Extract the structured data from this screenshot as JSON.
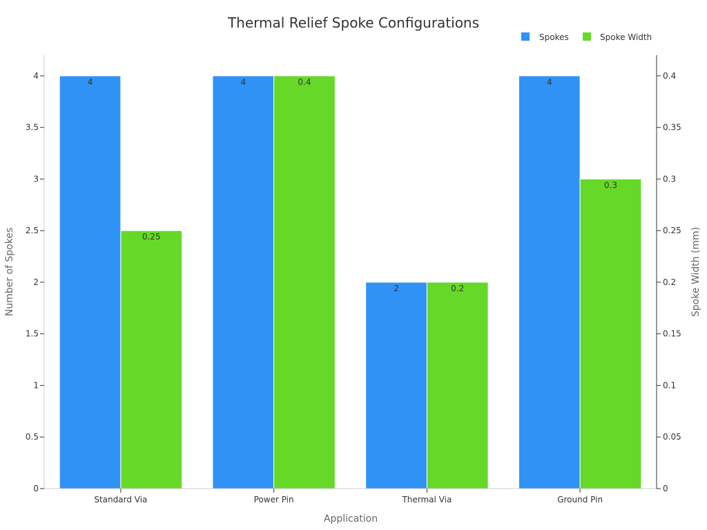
{
  "chart_data": {
    "type": "bar",
    "title": "Thermal Relief Spoke Configurations",
    "xlabel": "Application",
    "ylabel": "Number of Spokes",
    "y2label": "Spoke Width (mm)",
    "categories": [
      "Standard Via",
      "Power Pin",
      "Thermal Via",
      "Ground Pin"
    ],
    "series": [
      {
        "name": "Spokes",
        "axis": "left",
        "color": "#3092f5",
        "values": [
          4,
          4,
          2,
          4
        ],
        "labels": [
          "4",
          "4",
          "2",
          "4"
        ]
      },
      {
        "name": "Spoke Width",
        "axis": "right",
        "color": "#66d928",
        "values": [
          0.25,
          0.4,
          0.2,
          0.3
        ],
        "labels": [
          "0.25",
          "0.4",
          "0.2",
          "0.3"
        ]
      }
    ],
    "ylim": [
      0,
      4.2
    ],
    "y2lim": [
      0,
      0.42
    ],
    "yticks": [
      "0",
      "0.5",
      "1",
      "1.5",
      "2",
      "2.5",
      "3",
      "3.5",
      "4"
    ],
    "y2ticks": [
      "0",
      "0.05",
      "0.1",
      "0.15",
      "0.2",
      "0.25",
      "0.3",
      "0.35",
      "0.4"
    ],
    "grid": false,
    "legend_position": "top-right"
  }
}
